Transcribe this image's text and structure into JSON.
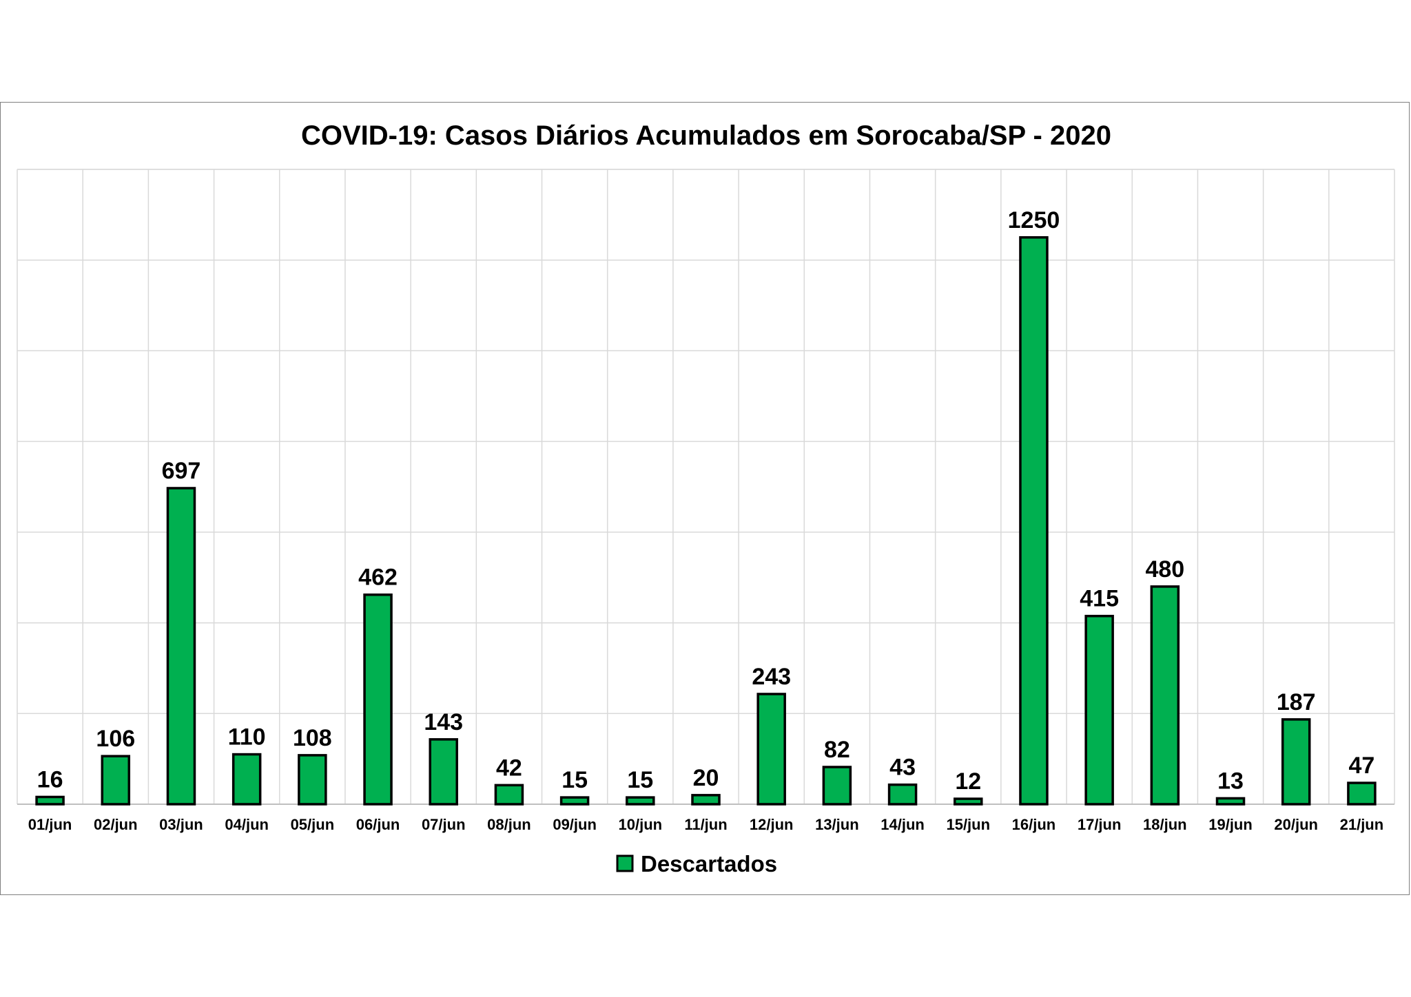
{
  "chart_data": {
    "type": "bar",
    "title": "COVID-19: Casos Diários Acumulados em Sorocaba/SP - 2020",
    "categories": [
      "01/jun",
      "02/jun",
      "03/jun",
      "04/jun",
      "05/jun",
      "06/jun",
      "07/jun",
      "08/jun",
      "09/jun",
      "10/jun",
      "11/jun",
      "12/jun",
      "13/jun",
      "14/jun",
      "15/jun",
      "16/jun",
      "17/jun",
      "18/jun",
      "19/jun",
      "20/jun",
      "21/jun"
    ],
    "series": [
      {
        "name": "Descartados",
        "color": "#00b050",
        "values": [
          16,
          106,
          697,
          110,
          108,
          462,
          143,
          42,
          15,
          15,
          20,
          243,
          82,
          43,
          12,
          1250,
          415,
          480,
          13,
          187,
          47
        ]
      }
    ],
    "xlabel": "",
    "ylabel": "",
    "ylim": [
      0,
      1400
    ],
    "grid": true,
    "legend_position": "bottom",
    "data_labels": true
  }
}
